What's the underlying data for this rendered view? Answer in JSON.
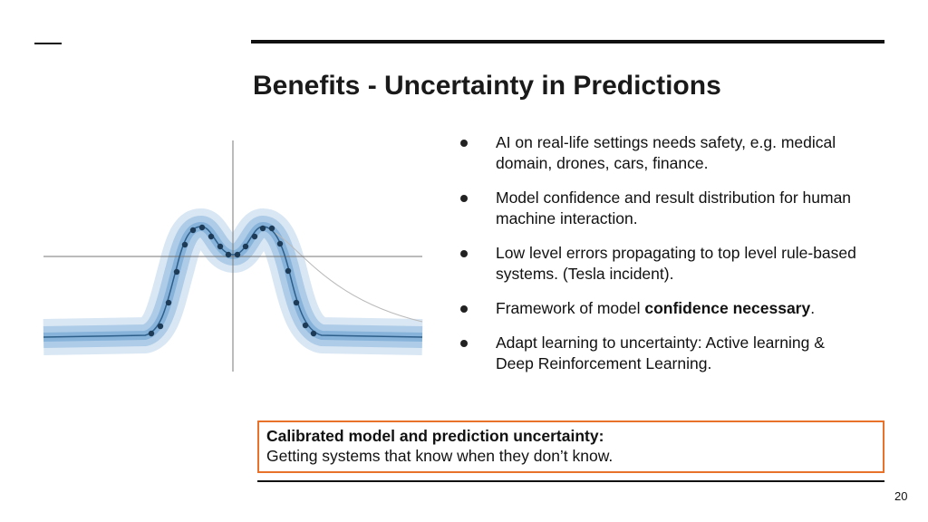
{
  "slide": {
    "title": "Benefits - Uncertainty in Predictions",
    "bullets": [
      [
        {
          "text": "AI on real-life settings needs safety, e.g. medical domain, drones, cars, finance."
        }
      ],
      [
        {
          "text": "Model confidence and result distribution for human machine interaction."
        }
      ],
      [
        {
          "text": "Low level errors propagating to top level rule-based systems. (Tesla incident)."
        }
      ],
      [
        {
          "text": "Framework of model "
        },
        {
          "text": "confidence necessary",
          "bold": true
        },
        {
          "text": "."
        }
      ],
      [
        {
          "text": "Adapt learning to uncertainty: Active learning & Deep Reinforcement Learning."
        }
      ]
    ],
    "callout": {
      "heading": "Calibrated model and prediction uncertainty:",
      "text": "Getting systems that know when they don’t know."
    },
    "page_number": "20"
  }
}
